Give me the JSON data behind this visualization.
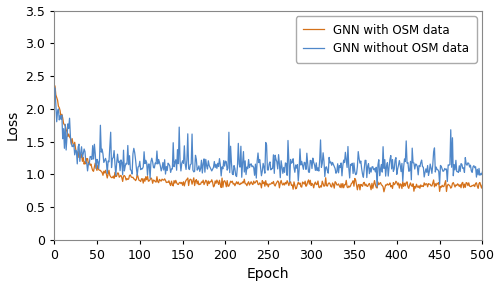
{
  "title": "",
  "xlabel": "Epoch",
  "ylabel": "Loss",
  "xlim": [
    0,
    500
  ],
  "ylim": [
    0,
    3.5
  ],
  "xticks": [
    0,
    50,
    100,
    150,
    200,
    250,
    300,
    350,
    400,
    450,
    500
  ],
  "yticks": [
    0,
    0.5,
    1.0,
    1.5,
    2.0,
    2.5,
    3.0,
    3.5
  ],
  "color_osm": "#d4711a",
  "color_no_osm": "#4f87c9",
  "label_osm": "GNN with OSM data",
  "label_no_osm": "GNN without OSM data",
  "legend_loc": "upper right",
  "linewidth": 0.9,
  "n_epochs": 500,
  "background_color": "#ffffff",
  "figsize": [
    5.0,
    2.87
  ],
  "dpi": 100
}
